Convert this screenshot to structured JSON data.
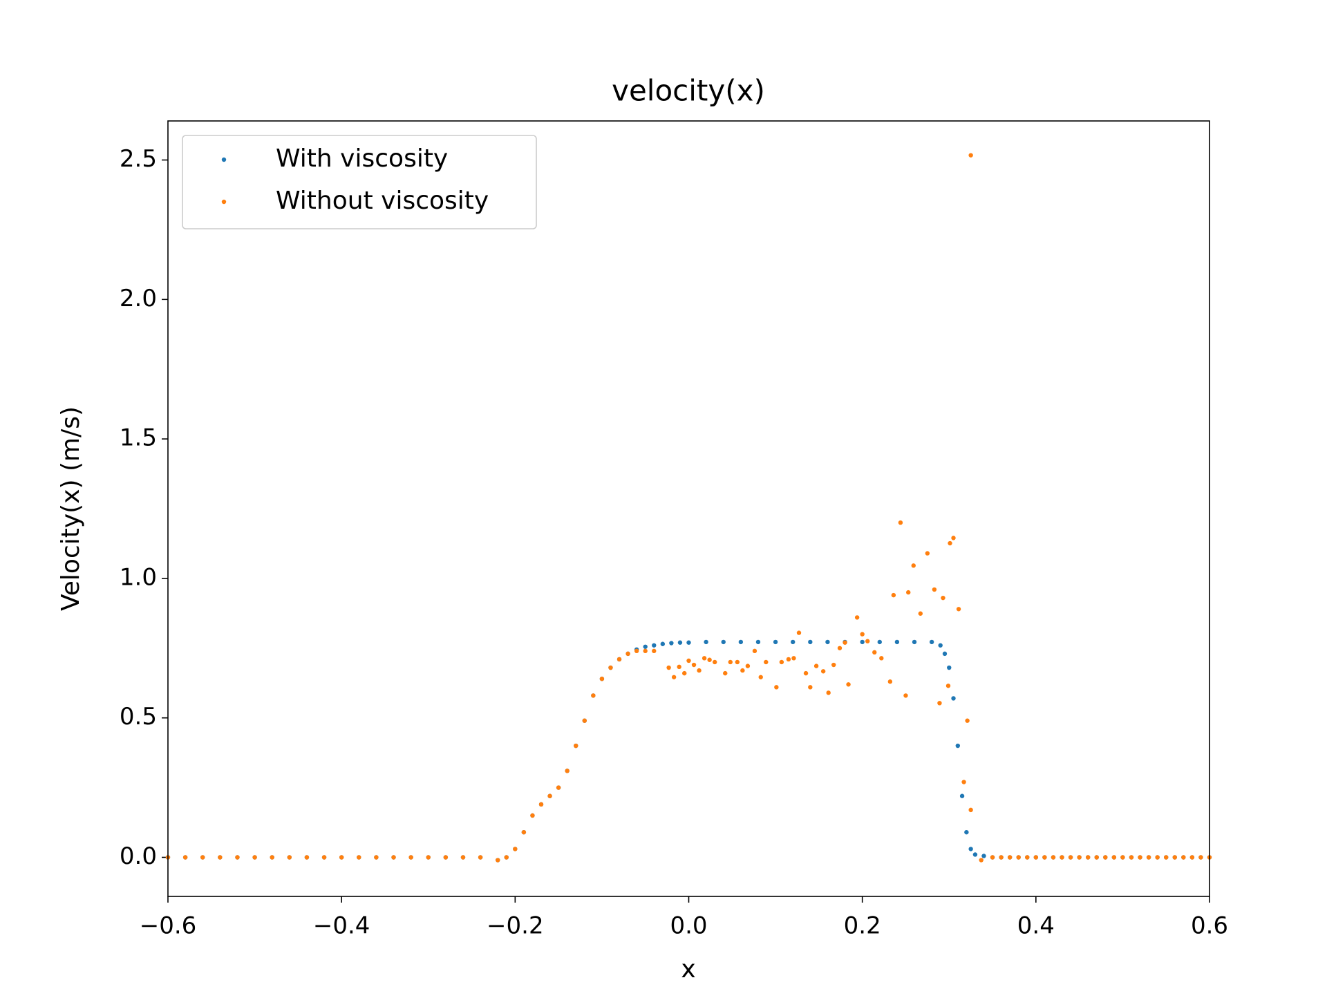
{
  "chart_data": {
    "type": "scatter",
    "title": "velocity(x)",
    "x_label": "x",
    "y_label": "Velocity(x) (m/s)",
    "xlim": [
      -0.6,
      0.6
    ],
    "ylim": [
      -0.14,
      2.64
    ],
    "xticks": [
      {
        "value": -0.6,
        "label": "−0.6"
      },
      {
        "value": -0.4,
        "label": "−0.4"
      },
      {
        "value": -0.2,
        "label": "−0.2"
      },
      {
        "value": 0,
        "label": "0.0"
      },
      0.2,
      0.4,
      0.6
    ],
    "yticks": [
      {
        "value": 0,
        "label": "0.0"
      },
      0.5,
      {
        "value": 1,
        "label": "1.0"
      },
      1.5,
      {
        "value": 2,
        "label": "2.0"
      },
      2.5
    ],
    "legend": "upper left",
    "grid": false,
    "series": [
      {
        "name": "With viscosity",
        "color": "#1f77b4",
        "x": [
          -0.6,
          -0.58,
          -0.56,
          -0.54,
          -0.52,
          -0.5,
          -0.48,
          -0.46,
          -0.44,
          -0.42,
          -0.4,
          -0.38,
          -0.36,
          -0.34,
          -0.32,
          -0.3,
          -0.28,
          -0.26,
          -0.24,
          -0.22,
          -0.21,
          -0.2,
          -0.19,
          -0.18,
          -0.17,
          -0.16,
          -0.15,
          -0.14,
          -0.13,
          -0.12,
          -0.11,
          -0.1,
          -0.09,
          -0.08,
          -0.07,
          -0.06,
          -0.05,
          -0.04,
          -0.03,
          -0.02,
          -0.01,
          0,
          0.02,
          0.04,
          0.06,
          0.08,
          0.1,
          0.12,
          0.14,
          0.16,
          0.18,
          0.2,
          0.22,
          0.24,
          0.26,
          0.28,
          0.29,
          0.295,
          0.3,
          0.305,
          0.31,
          0.315,
          0.32,
          0.325,
          0.33,
          0.34,
          0.35,
          0.36,
          0.37,
          0.38,
          0.39,
          0.4,
          0.41,
          0.42,
          0.43,
          0.44,
          0.45,
          0.46,
          0.47,
          0.48,
          0.49,
          0.5,
          0.51,
          0.52,
          0.53,
          0.54,
          0.55,
          0.56,
          0.57,
          0.58,
          0.59,
          0.6
        ],
        "values": [
          0,
          0,
          0,
          0,
          0,
          0,
          0,
          0,
          0,
          0,
          0,
          0,
          0,
          0,
          0,
          0,
          0,
          0,
          0,
          -0.01,
          0,
          0.03,
          0.09,
          0.15,
          0.19,
          0.22,
          0.25,
          0.31,
          0.4,
          0.49,
          0.58,
          0.64,
          0.68,
          0.71,
          0.73,
          0.745,
          0.755,
          0.76,
          0.765,
          0.768,
          0.77,
          0.77,
          0.772,
          0.772,
          0.772,
          0.772,
          0.772,
          0.772,
          0.772,
          0.772,
          0.772,
          0.772,
          0.772,
          0.772,
          0.772,
          0.772,
          0.76,
          0.73,
          0.68,
          0.57,
          0.4,
          0.22,
          0.09,
          0.03,
          0.01,
          0.005,
          0,
          0,
          0,
          0,
          0,
          0,
          0,
          0,
          0,
          0,
          0,
          0,
          0,
          0,
          0,
          0,
          0,
          0,
          0,
          0,
          0,
          0,
          0,
          0,
          0,
          0
        ]
      },
      {
        "name": "Without viscosity",
        "color": "#ff7f0e",
        "x": [
          -0.6,
          -0.58,
          -0.56,
          -0.54,
          -0.52,
          -0.5,
          -0.48,
          -0.46,
          -0.44,
          -0.42,
          -0.4,
          -0.38,
          -0.36,
          -0.34,
          -0.32,
          -0.3,
          -0.28,
          -0.26,
          -0.24,
          -0.22,
          -0.21,
          -0.2,
          -0.19,
          -0.18,
          -0.17,
          -0.16,
          -0.15,
          -0.14,
          -0.13,
          -0.12,
          -0.11,
          -0.1,
          -0.09,
          -0.08,
          -0.07,
          -0.06,
          -0.05,
          -0.04,
          -0.023,
          -0.017,
          -0.011,
          -0.005,
          0,
          0.006,
          0.012,
          0.018,
          0.024,
          0.03,
          0.042,
          0.048,
          0.056,
          0.062,
          0.068,
          0.076,
          0.083,
          0.089,
          0.101,
          0.107,
          0.115,
          0.121,
          0.127,
          0.135,
          0.14,
          0.147,
          0.155,
          0.161,
          0.167,
          0.174,
          0.18,
          0.184,
          0.194,
          0.2,
          0.206,
          0.214,
          0.222,
          0.232,
          0.236,
          0.244,
          0.25,
          0.253,
          0.259,
          0.267,
          0.275,
          0.283,
          0.289,
          0.293,
          0.299,
          0.301,
          0.305,
          0.311,
          0.317,
          0.321,
          0.325,
          0.325,
          0.337,
          0.35,
          0.36,
          0.37,
          0.38,
          0.39,
          0.4,
          0.41,
          0.42,
          0.43,
          0.44,
          0.45,
          0.46,
          0.47,
          0.48,
          0.49,
          0.5,
          0.51,
          0.52,
          0.53,
          0.54,
          0.55,
          0.56,
          0.57,
          0.58,
          0.59,
          0.6
        ],
        "values": [
          0,
          0,
          0,
          0,
          0,
          0,
          0,
          0,
          0,
          0,
          0,
          0,
          0,
          0,
          0,
          0,
          0,
          0,
          0,
          -0.01,
          0,
          0.03,
          0.09,
          0.15,
          0.19,
          0.22,
          0.25,
          0.31,
          0.4,
          0.49,
          0.58,
          0.64,
          0.68,
          0.71,
          0.73,
          0.74,
          0.74,
          0.74,
          0.68,
          0.646,
          0.683,
          0.66,
          0.705,
          0.69,
          0.67,
          0.714,
          0.708,
          0.7,
          0.66,
          0.7,
          0.7,
          0.67,
          0.686,
          0.74,
          0.646,
          0.7,
          0.61,
          0.7,
          0.71,
          0.714,
          0.805,
          0.66,
          0.61,
          0.686,
          0.667,
          0.59,
          0.69,
          0.75,
          0.77,
          0.62,
          0.86,
          0.8,
          0.775,
          0.735,
          0.714,
          0.63,
          0.94,
          1.2,
          0.58,
          0.95,
          1.046,
          0.874,
          1.09,
          0.96,
          0.553,
          0.93,
          0.615,
          1.126,
          1.145,
          0.89,
          0.27,
          0.49,
          0.17,
          2.517,
          -0.01,
          0,
          0,
          0,
          0,
          0,
          0,
          0,
          0,
          0,
          0,
          0,
          0,
          0,
          0,
          0,
          0,
          0,
          0,
          0,
          0,
          0,
          0,
          0,
          0,
          0,
          0
        ]
      }
    ]
  }
}
